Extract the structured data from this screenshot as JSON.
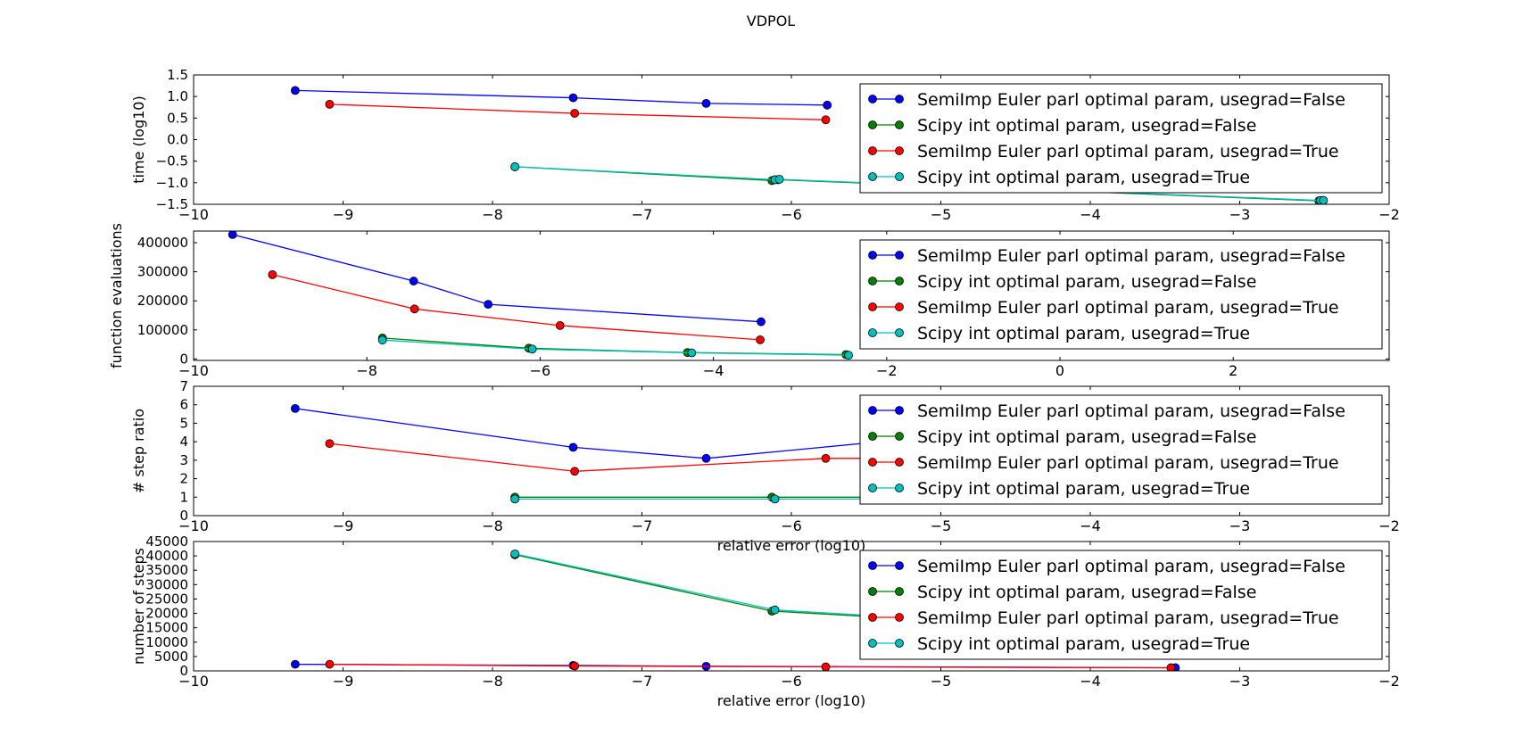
{
  "figure": {
    "title": "VDPOL"
  },
  "colors": {
    "semi_false": "#0000ff",
    "scipy_false": "#008000",
    "semi_true": "#ff0000",
    "scipy_true": "#00bfbf",
    "axis": "#000000",
    "background": "#ffffff"
  },
  "chart_data": [
    {
      "type": "line",
      "title": "VDPOL",
      "xlabel": "",
      "ylabel": "time (log10)",
      "xlim": [
        -10,
        -2
      ],
      "ylim": [
        -1.5,
        1.5
      ],
      "xticks": [
        -10,
        -9,
        -8,
        -7,
        -6,
        -5,
        -4,
        -3,
        -2
      ],
      "yticks": [
        -1.5,
        -1.0,
        -0.5,
        0.0,
        0.5,
        1.0,
        1.5
      ],
      "xtick_labels": [
        "−10",
        "−9",
        "−8",
        "−7",
        "−6",
        "−5",
        "−4",
        "−3",
        "−2"
      ],
      "ytick_labels": [
        "−1.5",
        "−1.0",
        "−0.5",
        "0.0",
        "0.5",
        "1.0",
        "1.5"
      ],
      "legend": "top-right",
      "grid": false,
      "series": [
        {
          "name": "SemiImp Euler parl optimal param, usegrad=False",
          "color_key": "semi_false",
          "x": [
            -9.32,
            -7.46,
            -6.57,
            -5.76
          ],
          "y": [
            1.14,
            0.97,
            0.84,
            0.8
          ]
        },
        {
          "name": "Scipy int optimal param, usegrad=False",
          "color_key": "scipy_false",
          "x": [
            -7.85,
            -6.13,
            -6.09,
            -2.47,
            -2.44
          ],
          "y": [
            -0.63,
            -0.95,
            -0.93,
            -1.42,
            -1.41
          ]
        },
        {
          "name": "SemiImp Euler parl optimal param, usegrad=True",
          "color_key": "semi_true",
          "x": [
            -9.09,
            -7.45,
            -5.77
          ],
          "y": [
            0.82,
            0.61,
            0.46
          ]
        },
        {
          "name": "Scipy int optimal param, usegrad=True",
          "color_key": "scipy_true",
          "x": [
            -7.85,
            -6.11,
            -6.08,
            -2.46,
            -2.44
          ],
          "y": [
            -0.63,
            -0.93,
            -0.92,
            -1.41,
            -1.41
          ]
        }
      ]
    },
    {
      "type": "line",
      "xlabel": "",
      "ylabel": "function evaluations",
      "xlim": [
        -10,
        3.8
      ],
      "ylim": [
        -5000,
        440000
      ],
      "xticks": [
        -10,
        -8,
        -6,
        -4,
        -2,
        0,
        2
      ],
      "yticks": [
        0,
        100000,
        200000,
        300000,
        400000
      ],
      "xtick_labels": [
        "−10",
        "−8",
        "−6",
        "−4",
        "−2",
        "0",
        "2"
      ],
      "ytick_labels": [
        "0",
        "100000",
        "200000",
        "300000",
        "400000"
      ],
      "legend": "top-right",
      "grid": false,
      "series": [
        {
          "name": "SemiImp Euler parl optimal param, usegrad=False",
          "color_key": "semi_false",
          "x": [
            -9.55,
            -7.46,
            -6.6,
            -3.45
          ],
          "y": [
            428000,
            268000,
            188000,
            128000
          ]
        },
        {
          "name": "Scipy int optimal param, usegrad=False",
          "color_key": "scipy_false",
          "x": [
            -7.82,
            -6.13,
            -4.3,
            -2.47
          ],
          "y": [
            72000,
            37000,
            22000,
            15000
          ]
        },
        {
          "name": "SemiImp Euler parl optimal param, usegrad=True",
          "color_key": "semi_true",
          "x": [
            -9.09,
            -7.45,
            -5.77,
            -3.46
          ],
          "y": [
            290000,
            172000,
            115000,
            66000
          ]
        },
        {
          "name": "Scipy int optimal param, usegrad=True",
          "color_key": "scipy_true",
          "x": [
            -7.82,
            -6.09,
            -4.25,
            -2.44
          ],
          "y": [
            65000,
            34000,
            21000,
            13000
          ]
        }
      ]
    },
    {
      "type": "line",
      "xlabel": "relative error (log10)",
      "ylabel": "# step ratio",
      "xlim": [
        -10,
        -2
      ],
      "ylim": [
        0,
        7
      ],
      "xticks": [
        -10,
        -9,
        -8,
        -7,
        -6,
        -5,
        -4,
        -3,
        -2
      ],
      "yticks": [
        0,
        1,
        2,
        3,
        4,
        5,
        6,
        7
      ],
      "xtick_labels": [
        "−10",
        "−9",
        "−8",
        "−7",
        "−6",
        "−5",
        "−4",
        "−3",
        "−2"
      ],
      "ytick_labels": [
        "0",
        "1",
        "2",
        "3",
        "4",
        "5",
        "6",
        "7"
      ],
      "legend": "top-right",
      "grid": false,
      "series": [
        {
          "name": "SemiImp Euler parl optimal param, usegrad=False",
          "color_key": "semi_false",
          "x": [
            -9.32,
            -7.46,
            -6.57,
            -4.5
          ],
          "y": [
            5.8,
            3.7,
            3.1,
            4.7
          ]
        },
        {
          "name": "Scipy int optimal param, usegrad=False",
          "color_key": "scipy_false",
          "x": [
            -7.85,
            -6.13,
            -4.5
          ],
          "y": [
            1.0,
            1.0,
            1.0
          ]
        },
        {
          "name": "SemiImp Euler parl optimal param, usegrad=True",
          "color_key": "semi_true",
          "x": [
            -9.09,
            -7.45,
            -5.77,
            -4.5
          ],
          "y": [
            3.9,
            2.4,
            3.1,
            3.1
          ]
        },
        {
          "name": "Scipy int optimal param, usegrad=True",
          "color_key": "scipy_true",
          "x": [
            -7.85,
            -6.11,
            -4.5
          ],
          "y": [
            0.9,
            0.9,
            0.9
          ]
        }
      ]
    },
    {
      "type": "line",
      "xlabel": "relative error (log10)",
      "ylabel": "number of steps",
      "xlim": [
        -10,
        -2
      ],
      "ylim": [
        0,
        45000
      ],
      "xticks": [
        -10,
        -9,
        -8,
        -7,
        -6,
        -5,
        -4,
        -3,
        -2
      ],
      "yticks": [
        0,
        5000,
        10000,
        15000,
        20000,
        25000,
        30000,
        35000,
        40000,
        45000
      ],
      "xtick_labels": [
        "−10",
        "−9",
        "−8",
        "−7",
        "−6",
        "−5",
        "−4",
        "−3",
        "−2"
      ],
      "ytick_labels": [
        "0",
        "5000",
        "10000",
        "15000",
        "20000",
        "25000",
        "30000",
        "35000",
        "40000",
        "45000"
      ],
      "legend": "top-right",
      "grid": false,
      "series": [
        {
          "name": "SemiImp Euler parl optimal param, usegrad=False",
          "color_key": "semi_false",
          "x": [
            -9.32,
            -7.46,
            -6.57,
            -3.43
          ],
          "y": [
            2300,
            1900,
            1600,
            1100
          ]
        },
        {
          "name": "Scipy int optimal param, usegrad=False",
          "color_key": "scipy_false",
          "x": [
            -7.85,
            -6.13,
            -5.0
          ],
          "y": [
            40400,
            20800,
            17500
          ]
        },
        {
          "name": "SemiImp Euler parl optimal param, usegrad=True",
          "color_key": "semi_true",
          "x": [
            -9.09,
            -7.45,
            -5.77,
            -3.46
          ],
          "y": [
            2300,
            1700,
            1400,
            1100
          ]
        },
        {
          "name": "Scipy int optimal param, usegrad=True",
          "color_key": "scipy_true",
          "x": [
            -7.85,
            -6.11,
            -5.0
          ],
          "y": [
            40700,
            21200,
            17800
          ]
        }
      ]
    }
  ]
}
